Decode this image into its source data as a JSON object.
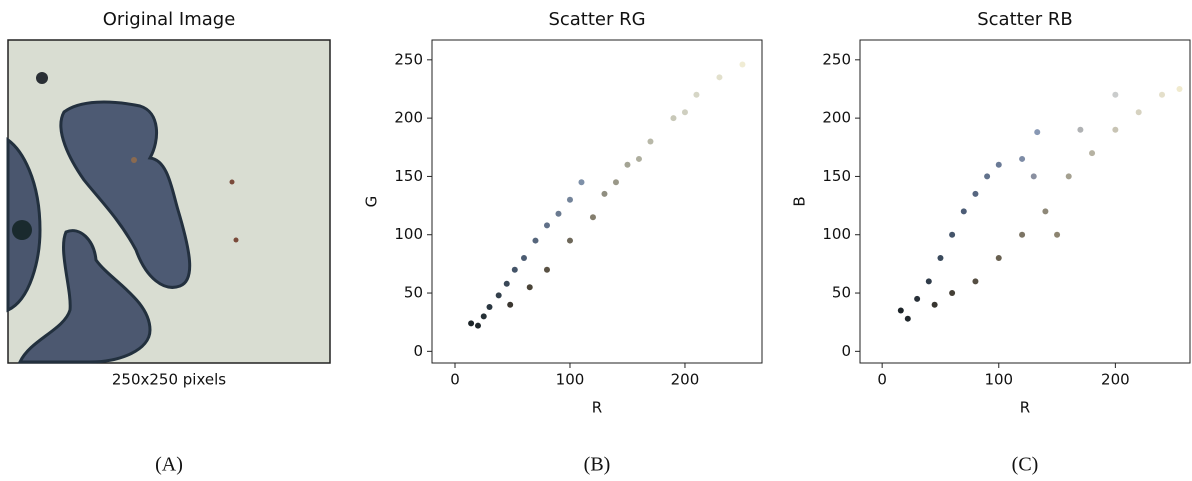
{
  "image_panel": {
    "title": "Original Image",
    "caption": "250x250 pixels",
    "label": "(A)"
  },
  "chart_data": [
    {
      "type": "scatter",
      "title": "Scatter RG",
      "panel_label": "(B)",
      "x_label": "R",
      "y_label": "G",
      "xlim": [
        -20,
        267
      ],
      "ylim": [
        -10,
        267
      ],
      "xticks": [
        0,
        100,
        200
      ],
      "yticks": [
        0,
        50,
        100,
        150,
        200,
        250
      ],
      "x": [
        14,
        20,
        25,
        30,
        38,
        45,
        52,
        60,
        70,
        80,
        90,
        100,
        110,
        48,
        65,
        80,
        100,
        120,
        130,
        150,
        170,
        190,
        210,
        230,
        250,
        140,
        160,
        200
      ],
      "values": [
        24,
        22,
        30,
        38,
        48,
        58,
        70,
        80,
        95,
        108,
        118,
        130,
        145,
        40,
        55,
        70,
        95,
        115,
        135,
        160,
        180,
        200,
        220,
        235,
        246,
        145,
        165,
        205
      ],
      "colors": [
        "#1c2428",
        "#20282c",
        "#263036",
        "#2a3640",
        "#33404c",
        "#3a4858",
        "#445468",
        "#4c5c72",
        "#56667c",
        "#607088",
        "#6a7a90",
        "#74849a",
        "#7e90a8",
        "#3a3630",
        "#4a4438",
        "#5a5244",
        "#6e685a",
        "#847e6e",
        "#908e80",
        "#a4a494",
        "#b8b8a8",
        "#c8c8b8",
        "#d6d6c6",
        "#e2e0cc",
        "#f0ecd4",
        "#9a9888",
        "#aeae9e",
        "#cfcfc0"
      ]
    },
    {
      "type": "scatter",
      "title": "Scatter RB",
      "panel_label": "(C)",
      "x_label": "R",
      "y_label": "B",
      "xlim": [
        -19,
        264
      ],
      "ylim": [
        -10,
        267
      ],
      "xticks": [
        0,
        100,
        200
      ],
      "yticks": [
        0,
        50,
        100,
        150,
        200,
        250
      ],
      "x": [
        16,
        22,
        30,
        40,
        50,
        60,
        70,
        80,
        90,
        100,
        120,
        133,
        45,
        60,
        80,
        100,
        120,
        140,
        160,
        180,
        200,
        220,
        240,
        255,
        130,
        170,
        200,
        150
      ],
      "values": [
        35,
        28,
        45,
        60,
        80,
        100,
        120,
        135,
        150,
        160,
        165,
        188,
        40,
        50,
        60,
        80,
        100,
        120,
        150,
        170,
        190,
        205,
        220,
        225,
        150,
        190,
        220,
        100
      ],
      "colors": [
        "#1c2428",
        "#20282c",
        "#283038",
        "#303c4a",
        "#3a4a5c",
        "#44546a",
        "#4c5c76",
        "#566680",
        "#62728c",
        "#6a7a96",
        "#7e8ca6",
        "#8898b4",
        "#383630",
        "#443f36",
        "#554e42",
        "#686050",
        "#7c7464",
        "#8e8878",
        "#a4a090",
        "#b6b2a2",
        "#c8c4b4",
        "#d6d2c0",
        "#e4dfca",
        "#f0eace",
        "#8a90a0",
        "#b0b2b4",
        "#cacccc",
        "#8c8470"
      ]
    }
  ]
}
